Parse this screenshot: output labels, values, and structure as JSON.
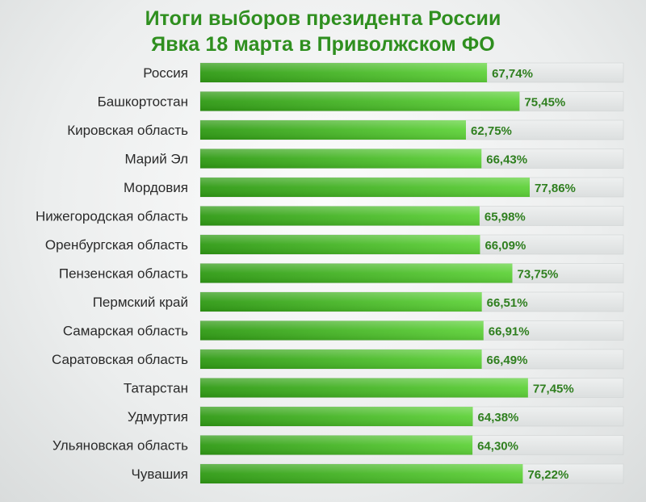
{
  "chart_data": {
    "type": "bar",
    "orientation": "horizontal",
    "title": "Итоги выборов президента России",
    "subtitle": "Явка 18 марта в Приволжском ФО",
    "categories": [
      "Россия",
      "Башкортостан",
      "Кировская область",
      "Марий Эл",
      "Мордовия",
      "Нижегородская область",
      "Оренбургская область",
      "Пензенская область",
      "Пермский край",
      "Самарская область",
      "Саратовская область",
      "Татарстан",
      "Удмуртия",
      "Ульяновская область",
      "Чувашия"
    ],
    "values": [
      67.74,
      75.45,
      62.75,
      66.43,
      77.86,
      65.98,
      66.09,
      73.75,
      66.51,
      66.91,
      66.49,
      77.45,
      64.38,
      64.3,
      76.22
    ],
    "value_labels": [
      "67,74%",
      "75,45%",
      "62,75%",
      "66,43%",
      "77,86%",
      "65,98%",
      "66,09%",
      "73,75%",
      "66,51%",
      "66,91%",
      "66,49%",
      "77,45%",
      "64,38%",
      "64,30%",
      "76,22%"
    ],
    "xlim": [
      0,
      100
    ],
    "xlabel": "",
    "ylabel": "",
    "grid": false,
    "legend": "none",
    "colors": {
      "title": "#2f8f1f",
      "bar_start": "#2f9a14",
      "bar_end": "#5fd23a",
      "track": "#e4e6e6",
      "value_label": "#2f7f1f"
    }
  }
}
